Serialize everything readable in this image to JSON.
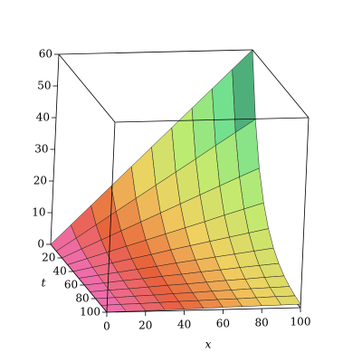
{
  "chart_data": {
    "type": "surface",
    "xlabel": "x",
    "ylabel": "t",
    "x": [
      0,
      10,
      20,
      30,
      40,
      50,
      60,
      70,
      80,
      90,
      100
    ],
    "y": [
      0,
      10,
      20,
      30,
      40,
      50,
      60,
      70,
      80,
      90,
      100
    ],
    "z": [
      [
        0,
        6,
        12,
        18,
        24,
        30,
        36,
        42,
        48,
        54,
        60
      ],
      [
        0,
        4.0,
        8.0,
        12.1,
        16.1,
        20.1,
        24.1,
        28.1,
        32.2,
        36.2,
        40.2
      ],
      [
        0,
        2.7,
        5.4,
        8.1,
        10.8,
        13.5,
        16.2,
        18.9,
        21.6,
        24.3,
        26.9
      ],
      [
        0,
        1.8,
        3.6,
        5.4,
        7.2,
        9.0,
        10.8,
        12.6,
        14.5,
        16.3,
        18.1
      ],
      [
        0,
        1.2,
        2.4,
        3.6,
        4.8,
        6.1,
        7.3,
        8.5,
        9.7,
        10.9,
        12.1
      ],
      [
        0,
        0.8,
        1.6,
        2.4,
        3.2,
        4.1,
        4.9,
        5.7,
        6.5,
        7.3,
        8.1
      ],
      [
        0,
        0.5,
        1.1,
        1.6,
        2.2,
        2.7,
        3.3,
        3.8,
        4.4,
        4.9,
        5.4
      ],
      [
        0,
        0.4,
        0.7,
        1.1,
        1.5,
        1.8,
        2.2,
        2.6,
        2.9,
        3.3,
        3.6
      ],
      [
        0,
        0.2,
        0.5,
        0.7,
        1.0,
        1.2,
        1.5,
        1.7,
        2.0,
        2.2,
        2.4
      ],
      [
        0,
        0.2,
        0.3,
        0.5,
        0.7,
        0.8,
        1.0,
        1.1,
        1.3,
        1.5,
        1.6
      ],
      [
        0,
        0.1,
        0.2,
        0.3,
        0.4,
        0.5,
        0.7,
        0.8,
        0.9,
        1.0,
        1.1
      ]
    ],
    "xlim": [
      0,
      100
    ],
    "ylim": [
      0,
      100
    ],
    "zlim": [
      0,
      60
    ],
    "xticks": [
      0,
      20,
      40,
      60,
      80,
      100
    ],
    "yticks": [
      20,
      40,
      60,
      80,
      100
    ],
    "zticks": [
      0,
      10,
      20,
      30,
      40,
      50,
      60
    ],
    "colormap": [
      "#f070c8",
      "#e8603a",
      "#f0d060",
      "#c0ec70",
      "#70e090",
      "#1f6a5c"
    ]
  }
}
